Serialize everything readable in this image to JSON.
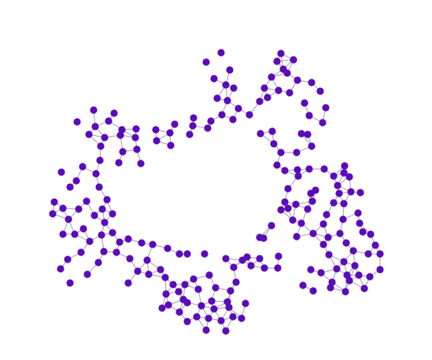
{
  "graph": {
    "node_color": "#5b0bb8",
    "edge_color": "#b4acbc",
    "background": "#ffffff"
  }
}
